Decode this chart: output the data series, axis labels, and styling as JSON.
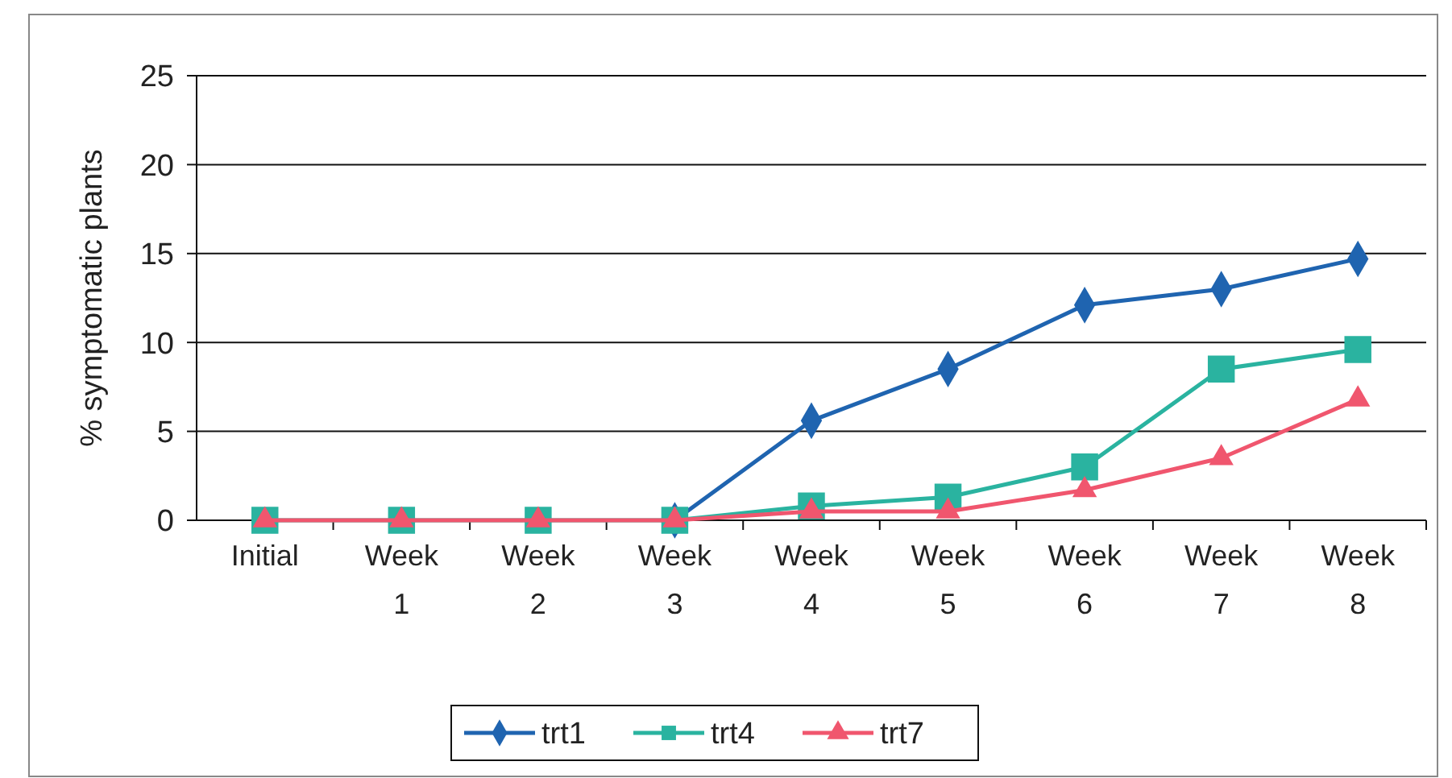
{
  "chart_data": {
    "type": "line",
    "ylabel": "% symptomatic plants",
    "categories": [
      "Initial",
      "Week 1",
      "Week 2",
      "Week 3",
      "Week 4",
      "Week 5",
      "Week 6",
      "Week 7",
      "Week 8"
    ],
    "series": [
      {
        "name": "trt1",
        "color": "#1f64b0",
        "marker": "diamond",
        "values": [
          null,
          null,
          null,
          0,
          5.6,
          8.5,
          12.1,
          13.0,
          14.7
        ]
      },
      {
        "name": "trt4",
        "color": "#2ab3a0",
        "marker": "square",
        "values": [
          0,
          0,
          0,
          0,
          0.8,
          1.3,
          3.0,
          8.5,
          9.6
        ]
      },
      {
        "name": "trt7",
        "color": "#f0566e",
        "marker": "triangle",
        "values": [
          0,
          0,
          0,
          0,
          0.5,
          0.5,
          1.7,
          3.5,
          6.8
        ]
      }
    ],
    "ylim": [
      0,
      25
    ],
    "yticks": [
      0,
      5,
      10,
      15,
      20,
      25
    ],
    "grid": "y",
    "legend": "bottom",
    "line_style": "solid"
  }
}
